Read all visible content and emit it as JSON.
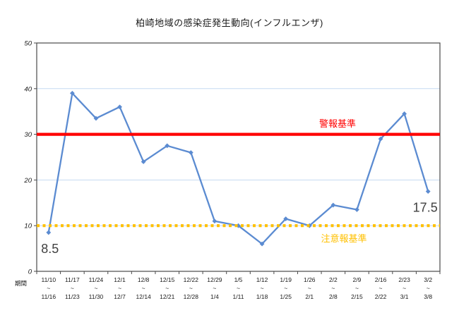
{
  "title": "柏崎地域の感染症発生動向(インフルエンザ)",
  "chart_data": {
    "type": "line",
    "title": "柏崎地域の感染症発生動向(インフルエンザ)",
    "x_axis_title": "期間",
    "category_separator": "~",
    "categories": [
      {
        "start": "11/10",
        "end": "11/16"
      },
      {
        "start": "11/17",
        "end": "11/23"
      },
      {
        "start": "11/24",
        "end": "11/30"
      },
      {
        "start": "12/1",
        "end": "12/7"
      },
      {
        "start": "12/8",
        "end": "12/14"
      },
      {
        "start": "12/15",
        "end": "12/21"
      },
      {
        "start": "12/22",
        "end": "12/28"
      },
      {
        "start": "12/29",
        "end": "1/4"
      },
      {
        "start": "1/5",
        "end": "1/11"
      },
      {
        "start": "1/12",
        "end": "1/18"
      },
      {
        "start": "1/19",
        "end": "1/25"
      },
      {
        "start": "1/26",
        "end": "2/1"
      },
      {
        "start": "2/2",
        "end": "2/8"
      },
      {
        "start": "2/9",
        "end": "2/15"
      },
      {
        "start": "2/16",
        "end": "2/22"
      },
      {
        "start": "2/23",
        "end": "3/1"
      },
      {
        "start": "3/2",
        "end": "3/8"
      }
    ],
    "values": [
      8.5,
      39,
      33.5,
      36,
      24,
      27.5,
      26,
      11,
      10,
      6,
      11.5,
      10,
      14.5,
      13.5,
      29,
      34.5,
      17.5
    ],
    "annotations": [
      {
        "index": 0,
        "text": "8.5"
      },
      {
        "index": 16,
        "text": "17.5"
      }
    ],
    "reference_lines": [
      {
        "label": "警報基準",
        "value": 30,
        "color": "#FF0000",
        "style": "solid"
      },
      {
        "label": "注意報基準",
        "value": 10,
        "color": "#FFC000",
        "style": "dotted"
      }
    ],
    "ylim": [
      0,
      50
    ],
    "ytick_interval": 10,
    "grid": true,
    "legend": "none",
    "colors": {
      "series_line": "#5B8BD1",
      "gridline": "#C5D9F1",
      "axis_frame": "#4A4A4A",
      "tick_text": "#1a1a1a",
      "annotation_text": "#404040"
    }
  }
}
